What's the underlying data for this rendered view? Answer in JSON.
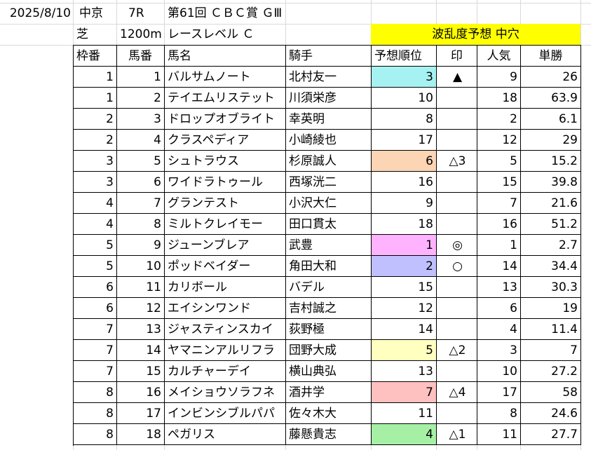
{
  "top_info": {
    "date": "2025/8/10",
    "venue": "中京",
    "race_no": "7R",
    "race_name": "第61回 ＣＢＣ賞 ＧⅢ",
    "surface": "芝",
    "distance": "1200m",
    "race_level": "レースレベル Ｃ"
  },
  "banner": {
    "text": "波乱度予想 中穴",
    "color": "#ffff00"
  },
  "table": {
    "headers": [
      "枠番",
      "馬番",
      "馬名",
      "騎手",
      "予想順位",
      "印",
      "人気",
      "単勝"
    ],
    "rows": [
      {
        "waku": "1",
        "umaban": "1",
        "name": "バルサムノート",
        "jockey": "北村友一",
        "rank": "3",
        "mark": "▲",
        "ninki": "9",
        "odds": "26",
        "rank_color": "#a6f2f2"
      },
      {
        "waku": "1",
        "umaban": "2",
        "name": "テイエムリステット",
        "jockey": "川須栄彦",
        "rank": "10",
        "mark": "",
        "ninki": "18",
        "odds": "63.9",
        "rank_color": ""
      },
      {
        "waku": "2",
        "umaban": "3",
        "name": "ドロップオブライト",
        "jockey": "幸英明",
        "rank": "8",
        "mark": "",
        "ninki": "2",
        "odds": "6.1",
        "rank_color": ""
      },
      {
        "waku": "2",
        "umaban": "4",
        "name": "クラスペディア",
        "jockey": "小崎綾也",
        "rank": "17",
        "mark": "",
        "ninki": "12",
        "odds": "29",
        "rank_color": ""
      },
      {
        "waku": "3",
        "umaban": "5",
        "name": "シュトラウス",
        "jockey": "杉原誠人",
        "rank": "6",
        "mark": "△3",
        "ninki": "5",
        "odds": "15.2",
        "rank_color": "#fcd5b4"
      },
      {
        "waku": "3",
        "umaban": "6",
        "name": "ワイドラトゥール",
        "jockey": "西塚洸二",
        "rank": "16",
        "mark": "",
        "ninki": "15",
        "odds": "39.8",
        "rank_color": ""
      },
      {
        "waku": "4",
        "umaban": "7",
        "name": "グランテスト",
        "jockey": "小沢大仁",
        "rank": "9",
        "mark": "",
        "ninki": "7",
        "odds": "21.6",
        "rank_color": ""
      },
      {
        "waku": "4",
        "umaban": "8",
        "name": "ミルトクレイモー",
        "jockey": "田口貫太",
        "rank": "18",
        "mark": "",
        "ninki": "16",
        "odds": "51.2",
        "rank_color": ""
      },
      {
        "waku": "5",
        "umaban": "9",
        "name": "ジューンブレア",
        "jockey": "武豊",
        "rank": "1",
        "mark": "◎",
        "ninki": "1",
        "odds": "2.7",
        "rank_color": "#ffb3ff"
      },
      {
        "waku": "5",
        "umaban": "10",
        "name": "ポッドベイダー",
        "jockey": "角田大和",
        "rank": "2",
        "mark": "○",
        "ninki": "14",
        "odds": "34.4",
        "rank_color": "#c0c0ff"
      },
      {
        "waku": "6",
        "umaban": "11",
        "name": "カリボール",
        "jockey": "バデル",
        "rank": "15",
        "mark": "",
        "ninki": "13",
        "odds": "30.3",
        "rank_color": ""
      },
      {
        "waku": "6",
        "umaban": "12",
        "name": "エイシンワンド",
        "jockey": "吉村誠之",
        "rank": "12",
        "mark": "",
        "ninki": "6",
        "odds": "19",
        "rank_color": ""
      },
      {
        "waku": "7",
        "umaban": "13",
        "name": "ジャスティンスカイ",
        "jockey": "荻野極",
        "rank": "14",
        "mark": "",
        "ninki": "4",
        "odds": "11.4",
        "rank_color": ""
      },
      {
        "waku": "7",
        "umaban": "14",
        "name": "ヤマニンアルリフラ",
        "jockey": "団野大成",
        "rank": "5",
        "mark": "△2",
        "ninki": "3",
        "odds": "7",
        "rank_color": "#ffffc0"
      },
      {
        "waku": "7",
        "umaban": "15",
        "name": "カルチャーデイ",
        "jockey": "横山典弘",
        "rank": "13",
        "mark": "",
        "ninki": "10",
        "odds": "27.2",
        "rank_color": ""
      },
      {
        "waku": "8",
        "umaban": "16",
        "name": "メイショウソラフネ",
        "jockey": "酒井学",
        "rank": "7",
        "mark": "△4",
        "ninki": "17",
        "odds": "58",
        "rank_color": "#ffc0c0"
      },
      {
        "waku": "8",
        "umaban": "17",
        "name": "インビンシブルパパ",
        "jockey": "佐々木大",
        "rank": "11",
        "mark": "",
        "ninki": "8",
        "odds": "24.6",
        "rank_color": ""
      },
      {
        "waku": "8",
        "umaban": "18",
        "name": "ペガリス",
        "jockey": "藤懸貴志",
        "rank": "4",
        "mark": "△1",
        "ninki": "11",
        "odds": "27.7",
        "rank_color": "#a6f0a6"
      }
    ]
  }
}
